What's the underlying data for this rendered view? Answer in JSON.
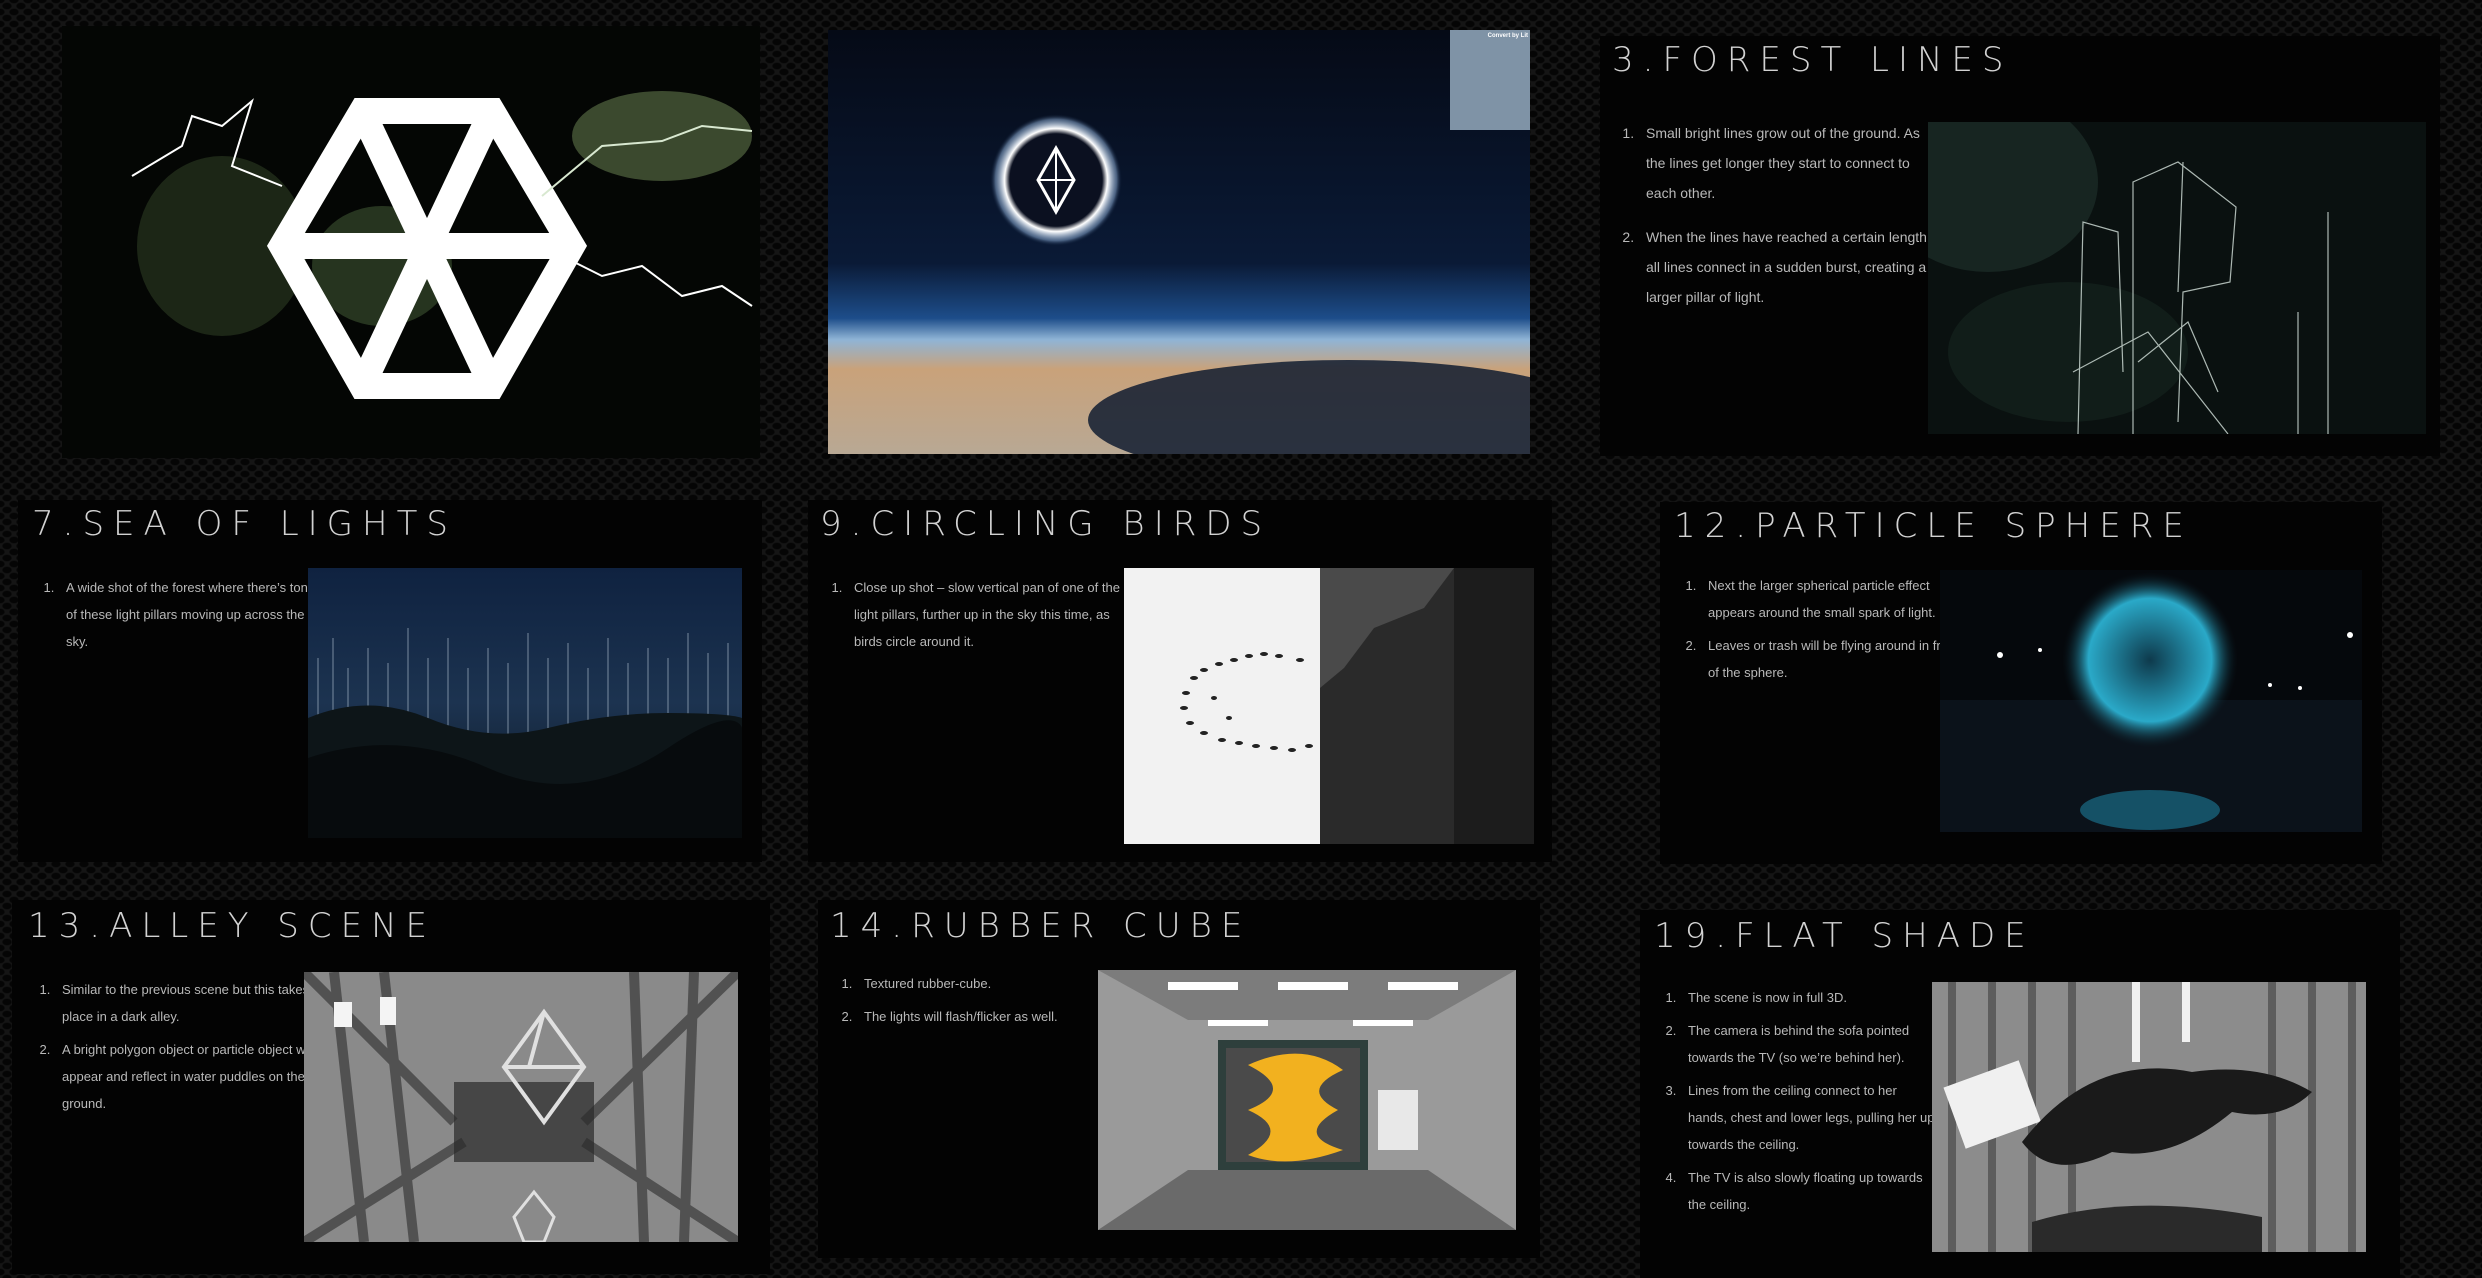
{
  "panels": {
    "forest_lines": {
      "title": "3.FOREST LINES",
      "steps": [
        "Small bright lines grow out of the ground. As the lines get longer they start to connect to each other.",
        "When the lines have reached a certain length all lines connect in a sudden burst, creating a larger pillar of light."
      ]
    },
    "sea_of_lights": {
      "title": "7.SEA OF LIGHTS",
      "steps": [
        "A wide shot of the forest where there’s tons of these light pillars moving up across the sky."
      ]
    },
    "circling_birds": {
      "title": "9.CIRCLING BIRDS",
      "steps": [
        "Close up shot – slow vertical pan of one of the light pillars, further up in the sky this time, as birds circle around it."
      ]
    },
    "particle_sphere": {
      "title": "12.PARTICLE SPHERE",
      "steps": [
        "Next the larger spherical particle effect appears around the small spark of light.",
        "Leaves or trash will be flying around in front of the sphere."
      ]
    },
    "alley_scene": {
      "title": "13.ALLEY SCENE",
      "steps": [
        "Similar to the previous scene but this takes place in a dark alley.",
        "A bright polygon object or particle object will appear and reflect in water puddles on the ground."
      ]
    },
    "rubber_cube": {
      "title": "14.RUBBER CUBE",
      "steps": [
        "Textured rubber-cube.",
        "The lights will flash/flicker as well."
      ]
    },
    "flat_shade": {
      "title": "19.FLAT SHADE",
      "steps": [
        "The scene is now in full 3D.",
        "The camera is behind the sofa pointed towards the TV (so we’re behind her).",
        "Lines from the ceiling connect to her hands, chest and lower legs, pulling her up towards the ceiling.",
        "The TV is also slowly floating up towards the ceiling."
      ]
    }
  },
  "images": {
    "earth_corner_label": "Convert by Lit"
  },
  "colors": {
    "page_background": "#151515",
    "panel_background": "#030303",
    "title_text": "#d2d2d2",
    "body_text": "#b9b9b9"
  }
}
